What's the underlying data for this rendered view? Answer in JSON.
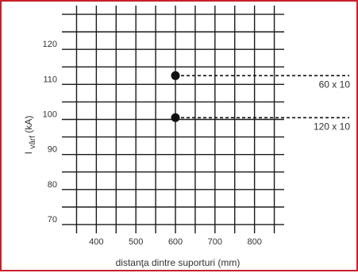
{
  "chart_data": {
    "type": "scatter",
    "title": "",
    "xlabel": "distanţa dintre suporturi (mm)",
    "ylabel": {
      "base": "I",
      "subscript": "vârf",
      "unit": " (kA)"
    },
    "x_ticks": [
      400,
      500,
      600,
      700,
      800
    ],
    "y_ticks": [
      70,
      80,
      90,
      100,
      110,
      120
    ],
    "xlim": [
      325,
      875
    ],
    "ylim": [
      67.5,
      132.5
    ],
    "grid": true,
    "grid_step_x": 50,
    "grid_step_y": 5,
    "points": [
      {
        "x": 600,
        "y": 112.5,
        "label": "60 x 10"
      },
      {
        "x": 600,
        "y": 100.5,
        "label": "120 x 10"
      }
    ],
    "colors": {
      "frame": "#c8202a",
      "grid": "#1a1a1a",
      "point": "#111111",
      "text": "#333333"
    }
  }
}
